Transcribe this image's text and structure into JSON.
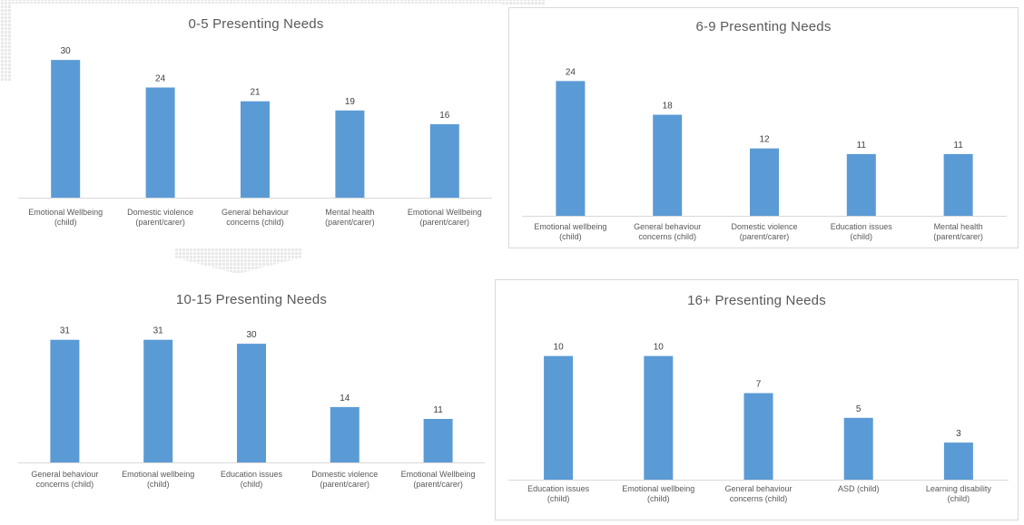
{
  "chart_data": [
    {
      "type": "bar",
      "title": "0-5 Presenting Needs",
      "categories": [
        "Emotional Wellbeing (child)",
        "Domestic violence (parent/carer)",
        "General behaviour concerns (child)",
        "Mental health (parent/carer)",
        "Emotional Wellbeing (parent/carer)"
      ],
      "values": [
        30,
        24,
        21,
        19,
        16
      ],
      "ylim": [
        0,
        32
      ],
      "color": "#5b9bd5",
      "grid": false,
      "legend": "none"
    },
    {
      "type": "bar",
      "title": "6-9 Presenting Needs",
      "categories": [
        "Emotional wellbeing (child)",
        "General behaviour concerns (child)",
        "Domestic violence (parent/carer)",
        "Education issues (child)",
        "Mental health (parent/carer)"
      ],
      "values": [
        24,
        18,
        12,
        11,
        11
      ],
      "ylim": [
        0,
        26
      ],
      "color": "#5b9bd5",
      "grid": false,
      "legend": "none"
    },
    {
      "type": "bar",
      "title": "10-15 Presenting Needs",
      "categories": [
        "General behaviour concerns (child)",
        "Emotional wellbeing (child)",
        "Education issues (child)",
        "Domestic violence (parent/carer)",
        "Emotional Wellbeing (parent/carer)"
      ],
      "values": [
        31,
        31,
        30,
        14,
        11
      ],
      "ylim": [
        0,
        33
      ],
      "color": "#5b9bd5",
      "grid": false,
      "legend": "none"
    },
    {
      "type": "bar",
      "title": "16+ Presenting Needs",
      "categories": [
        "Education issues (child)",
        "Emotional wellbeing (child)",
        "General behaviour concerns (child)",
        "ASD (child)",
        "Learning disability (child)"
      ],
      "values": [
        10,
        10,
        7,
        5,
        3
      ],
      "ylim": [
        0,
        11
      ],
      "color": "#5b9bd5",
      "grid": false,
      "legend": "none"
    }
  ]
}
